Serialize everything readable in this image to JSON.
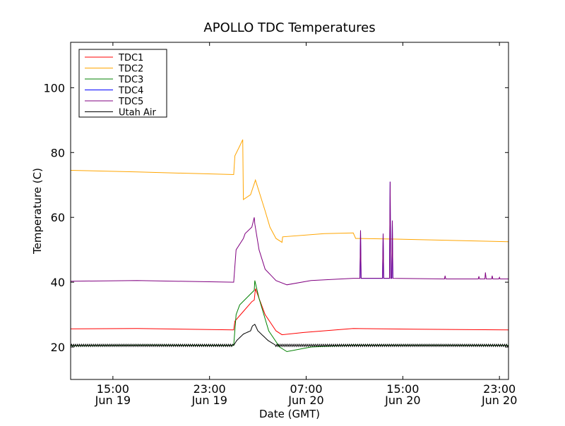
{
  "chart_data": {
    "type": "line",
    "title": "APOLLO TDC Temperatures",
    "xlabel": "Date (GMT)",
    "ylabel": "Temperature (C)",
    "x_units": "hours since Jun 19 00:00 GMT",
    "xlim": [
      11.5,
      47.75
    ],
    "ylim": [
      10,
      114
    ],
    "yticks": [
      20,
      40,
      60,
      80,
      100
    ],
    "ytick_labels": [
      "20",
      "40",
      "60",
      "80",
      "100"
    ],
    "xticks": [
      15,
      23,
      31,
      39,
      47
    ],
    "xtick_labels": [
      {
        "time": "15:00",
        "date": "Jun 19"
      },
      {
        "time": "23:00",
        "date": "Jun 19"
      },
      {
        "time": "07:00",
        "date": "Jun 20"
      },
      {
        "time": "15:00",
        "date": "Jun 20"
      },
      {
        "time": "23:00",
        "date": "Jun 20"
      }
    ],
    "grid": false,
    "legend_position": "top-left",
    "series": [
      {
        "name": "TDC1",
        "color": "#ff0000",
        "points": [
          [
            11.5,
            25.6
          ],
          [
            17,
            25.7
          ],
          [
            25,
            25.3
          ],
          [
            25.1,
            28
          ],
          [
            25.8,
            31
          ],
          [
            26.5,
            34
          ],
          [
            26.7,
            34.5
          ],
          [
            26.8,
            38
          ],
          [
            27.6,
            30
          ],
          [
            28.5,
            25
          ],
          [
            29,
            23.8
          ],
          [
            30.8,
            24.5
          ],
          [
            34.9,
            25.7
          ],
          [
            40,
            25.5
          ],
          [
            47.75,
            25.3
          ]
        ]
      },
      {
        "name": "TDC2",
        "color": "#ffa500",
        "points": [
          [
            11.5,
            74.5
          ],
          [
            17,
            74
          ],
          [
            25,
            73.2
          ],
          [
            25.1,
            79
          ],
          [
            25.5,
            82
          ],
          [
            25.75,
            84
          ],
          [
            25.8,
            65.5
          ],
          [
            26.4,
            67
          ],
          [
            26.8,
            71.5
          ],
          [
            27.6,
            62
          ],
          [
            28,
            57
          ],
          [
            28.5,
            53.5
          ],
          [
            29,
            52.3
          ],
          [
            29.05,
            54
          ],
          [
            32.5,
            55
          ],
          [
            34.9,
            55.2
          ],
          [
            35.1,
            53.5
          ],
          [
            38.4,
            53.3
          ],
          [
            47.75,
            52.5
          ]
        ]
      },
      {
        "name": "TDC3",
        "color": "#008000",
        "points": [
          [
            11.5,
            20.4
          ],
          [
            18,
            20.6
          ],
          [
            25,
            20.5
          ],
          [
            25.2,
            30
          ],
          [
            25.5,
            33
          ],
          [
            26.3,
            36
          ],
          [
            26.7,
            37.5
          ],
          [
            26.75,
            40.5
          ],
          [
            27.1,
            35
          ],
          [
            27.9,
            25
          ],
          [
            28.8,
            20
          ],
          [
            29.4,
            18.6
          ],
          [
            31.4,
            20
          ],
          [
            34.9,
            20.6
          ],
          [
            47.75,
            20.5
          ]
        ]
      },
      {
        "name": "TDC4",
        "color": "#0000ff",
        "points": [
          [
            35.45,
            41.2
          ],
          [
            35.5,
            56
          ],
          [
            35.55,
            41.2
          ],
          [
            37.32,
            41.2
          ],
          [
            37.37,
            55
          ],
          [
            37.42,
            41.2
          ],
          [
            37.9,
            41.2
          ],
          [
            37.95,
            71
          ],
          [
            38.0,
            41.2
          ],
          [
            38.08,
            41.2
          ],
          [
            38.13,
            59
          ],
          [
            38.18,
            41.2
          ]
        ]
      },
      {
        "name": "TDC5",
        "color": "#800080",
        "points": [
          [
            11.5,
            40.3
          ],
          [
            17,
            40.5
          ],
          [
            25,
            40
          ],
          [
            25.2,
            50
          ],
          [
            25.8,
            53.5
          ],
          [
            25.95,
            55
          ],
          [
            26.5,
            57
          ],
          [
            26.7,
            60
          ],
          [
            26.75,
            58
          ],
          [
            27.1,
            50
          ],
          [
            27.6,
            44
          ],
          [
            28.5,
            40.5
          ],
          [
            29.4,
            39.2
          ],
          [
            31.4,
            40.5
          ],
          [
            34.9,
            41.2
          ],
          [
            35.45,
            41.2
          ],
          [
            35.5,
            56
          ],
          [
            35.55,
            41.2
          ],
          [
            37.32,
            41.2
          ],
          [
            37.37,
            55
          ],
          [
            37.42,
            41.2
          ],
          [
            37.9,
            41.2
          ],
          [
            37.95,
            71
          ],
          [
            38.0,
            41.2
          ],
          [
            38.08,
            41.2
          ],
          [
            38.13,
            59
          ],
          [
            38.18,
            41.2
          ],
          [
            42.45,
            41
          ],
          [
            42.5,
            42
          ],
          [
            42.55,
            41
          ],
          [
            45.25,
            41
          ],
          [
            45.3,
            41.8
          ],
          [
            45.35,
            41
          ],
          [
            45.8,
            41
          ],
          [
            45.84,
            43
          ],
          [
            45.9,
            41
          ],
          [
            46.35,
            41
          ],
          [
            46.4,
            42
          ],
          [
            46.45,
            41
          ],
          [
            46.95,
            41
          ],
          [
            47.0,
            41.5
          ],
          [
            47.05,
            41
          ],
          [
            47.75,
            41
          ]
        ]
      },
      {
        "name": "Utah Air",
        "color": "#000000",
        "points": [
          [
            11.5,
            20.5
          ],
          [
            25,
            20.5
          ],
          [
            25.25,
            22
          ],
          [
            25.8,
            24
          ],
          [
            26.4,
            25
          ],
          [
            26.55,
            26.5
          ],
          [
            26.75,
            27
          ],
          [
            27,
            25
          ],
          [
            27.85,
            22
          ],
          [
            28.5,
            20.5
          ],
          [
            47.75,
            20.5
          ]
        ]
      }
    ]
  }
}
